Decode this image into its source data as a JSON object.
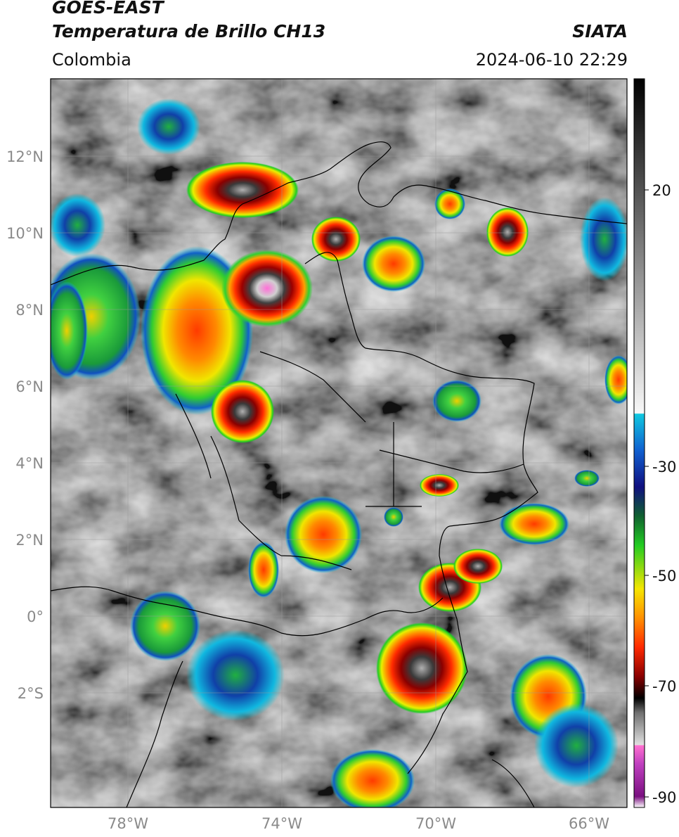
{
  "header": {
    "satellite": "GOES-EAST",
    "product": "Temperatura de Brillo CH13",
    "agency": "SIATA",
    "region": "Colombia",
    "datetime": "2024-06-10 22:29"
  },
  "axes": {
    "lat_ticks": [
      "12°N",
      "10°N",
      "8°N",
      "6°N",
      "4°N",
      "2°N",
      "0°",
      "2°S"
    ],
    "lon_ticks": [
      "78°W",
      "74°W",
      "70°W",
      "66°W"
    ],
    "gridlines": true
  },
  "colorbar": {
    "ticks": [
      "20",
      "-30",
      "-50",
      "-70",
      "-90"
    ],
    "orientation": "vertical",
    "placement": "right"
  },
  "palette": {
    "background": "#7a7a7a",
    "cold_top": "#ff5fd2",
    "deep_red": "#a00000",
    "red": "#ff2a00",
    "orange": "#ff8c00",
    "yellow": "#f5e600",
    "green": "#22cc22",
    "blue": "#1050c0",
    "cyan": "#10c8e0",
    "boundary": "#000000"
  }
}
